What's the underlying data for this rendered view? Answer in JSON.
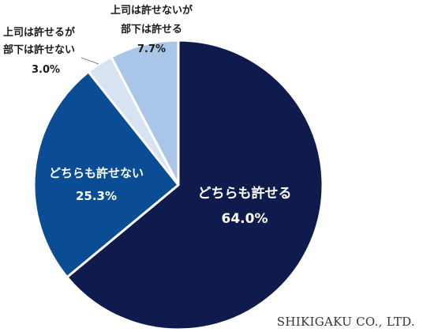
{
  "chart_data": {
    "type": "pie",
    "title": "",
    "slices": [
      {
        "label": "どちらも許せる",
        "value": 64.0,
        "value_label": "64.0%",
        "color": "#0f1b4d"
      },
      {
        "label": "どちらも許せない",
        "value": 25.3,
        "value_label": "25.3%",
        "color": "#0a4d94"
      },
      {
        "label": "上司は許せるが部下は許せない",
        "label_lines": [
          "上司は許せるが",
          "部下は許せない"
        ],
        "value": 3.0,
        "value_label": "3.0%",
        "color": "#d7e3f2"
      },
      {
        "label": "上司は許せないが部下は許せる",
        "label_lines": [
          "上司は許せないが",
          "部下は許せる"
        ],
        "value": 7.7,
        "value_label": "7.7%",
        "color": "#a9c6e8"
      }
    ],
    "start_angle": "12 o'clock",
    "direction": "clockwise",
    "legend": "none"
  },
  "credit": "SHIKIGAKU CO., LTD."
}
